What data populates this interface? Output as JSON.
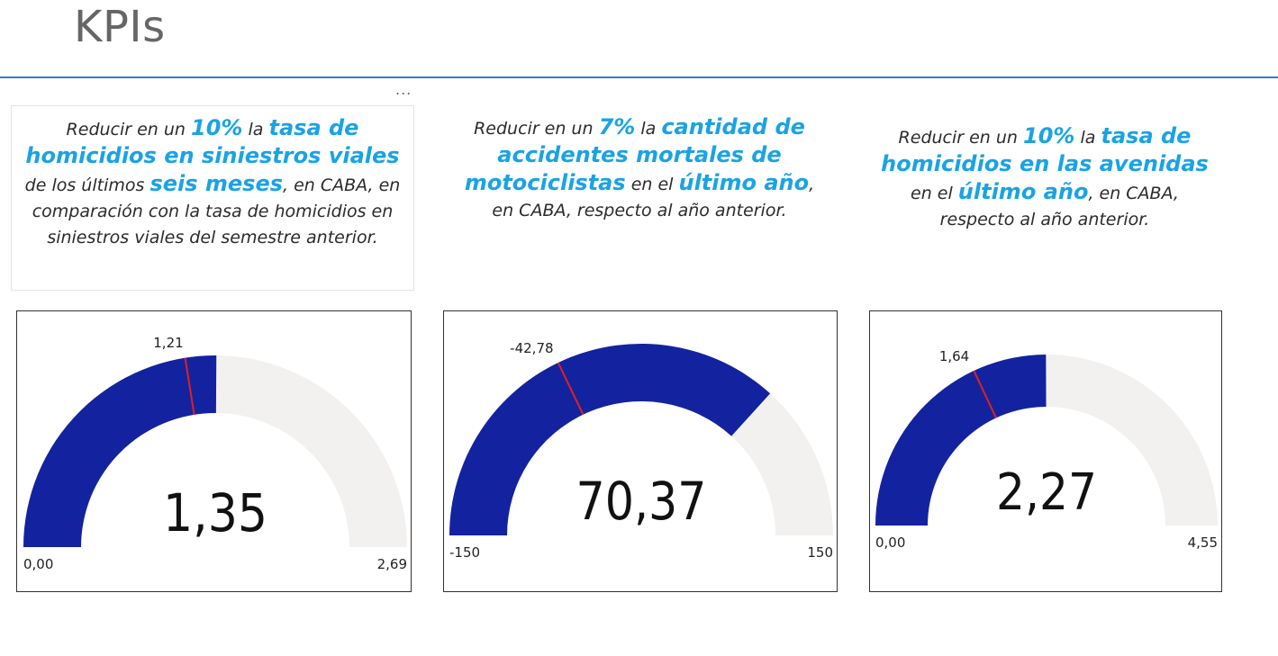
{
  "page": {
    "title": "KPIs"
  },
  "visual_menu": {
    "label": "..."
  },
  "kpis": [
    {
      "statement": [
        {
          "t": "Reducir en un ",
          "b": false
        },
        {
          "t": "10%",
          "b": true
        },
        {
          "t": " la ",
          "b": false
        },
        {
          "t": "tasa de homicidios en siniestros viales",
          "b": true
        },
        {
          "t": " de los últimos ",
          "b": false
        },
        {
          "t": "seis meses",
          "b": true
        },
        {
          "t": ", en CABA, en comparación con la tasa de homicidios en siniestros viales del semestre anterior.",
          "b": false
        }
      ],
      "gauge": {
        "value": 1.35,
        "value_label": "1,35",
        "min": 0,
        "min_label": "0,00",
        "max": 2.69,
        "max_label": "2,69",
        "target": 1.21,
        "target_label": "1,21"
      }
    },
    {
      "statement": [
        {
          "t": "Reducir en un ",
          "b": false
        },
        {
          "t": "7%",
          "b": true
        },
        {
          "t": " la ",
          "b": false
        },
        {
          "t": "cantidad de accidentes mortales de motociclistas",
          "b": true
        },
        {
          "t": " en el ",
          "b": false
        },
        {
          "t": "último año",
          "b": true
        },
        {
          "t": ", en CABA, respecto al año anterior.",
          "b": false
        }
      ],
      "gauge": {
        "value": 70.37,
        "value_label": "70,37",
        "min": -150,
        "min_label": "-150",
        "max": 150,
        "max_label": "150",
        "target": -42.78,
        "target_label": "-42,78"
      }
    },
    {
      "statement": [
        {
          "t": "Reducir en un ",
          "b": false
        },
        {
          "t": "10%",
          "b": true
        },
        {
          "t": " la  ",
          "b": false
        },
        {
          "t": "tasa de homicidios  en las avenidas",
          "b": true
        },
        {
          "t": " en el ",
          "b": false
        },
        {
          "t": "último año",
          "b": true
        },
        {
          "t": ", en CABA, respecto al año anterior.",
          "b": false
        }
      ],
      "gauge": {
        "value": 2.27,
        "value_label": "2,27",
        "min": 0,
        "min_label": "0,00",
        "max": 4.55,
        "max_label": "4,55",
        "target": 1.64,
        "target_label": "1,64"
      }
    }
  ],
  "colors": {
    "fill": "#13239f",
    "track": "#f2f1ef",
    "target": "#e02020",
    "accent": "#1aa3e3",
    "rule": "#2f7bd1"
  }
}
